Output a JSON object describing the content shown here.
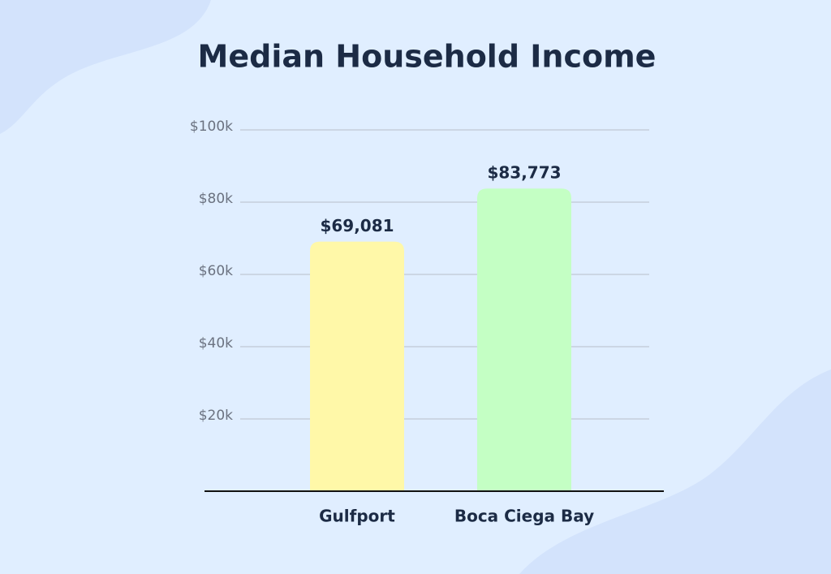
{
  "chart_data": {
    "type": "bar",
    "title": "Median Household Income",
    "categories": [
      "Gulfport",
      "Boca Ciega Bay"
    ],
    "values": [
      69081,
      83773
    ],
    "value_labels": [
      "$69,081",
      "$83,773"
    ],
    "colors": [
      "#fff8a8",
      "#c4ffc4"
    ],
    "ylim": [
      0,
      100000
    ],
    "yticks": [
      {
        "value": 20000,
        "label": "$20k"
      },
      {
        "value": 40000,
        "label": "$40k"
      },
      {
        "value": 60000,
        "label": "$60k"
      },
      {
        "value": 80000,
        "label": "$80k"
      },
      {
        "value": 100000,
        "label": "$100k"
      }
    ],
    "grid": true
  }
}
